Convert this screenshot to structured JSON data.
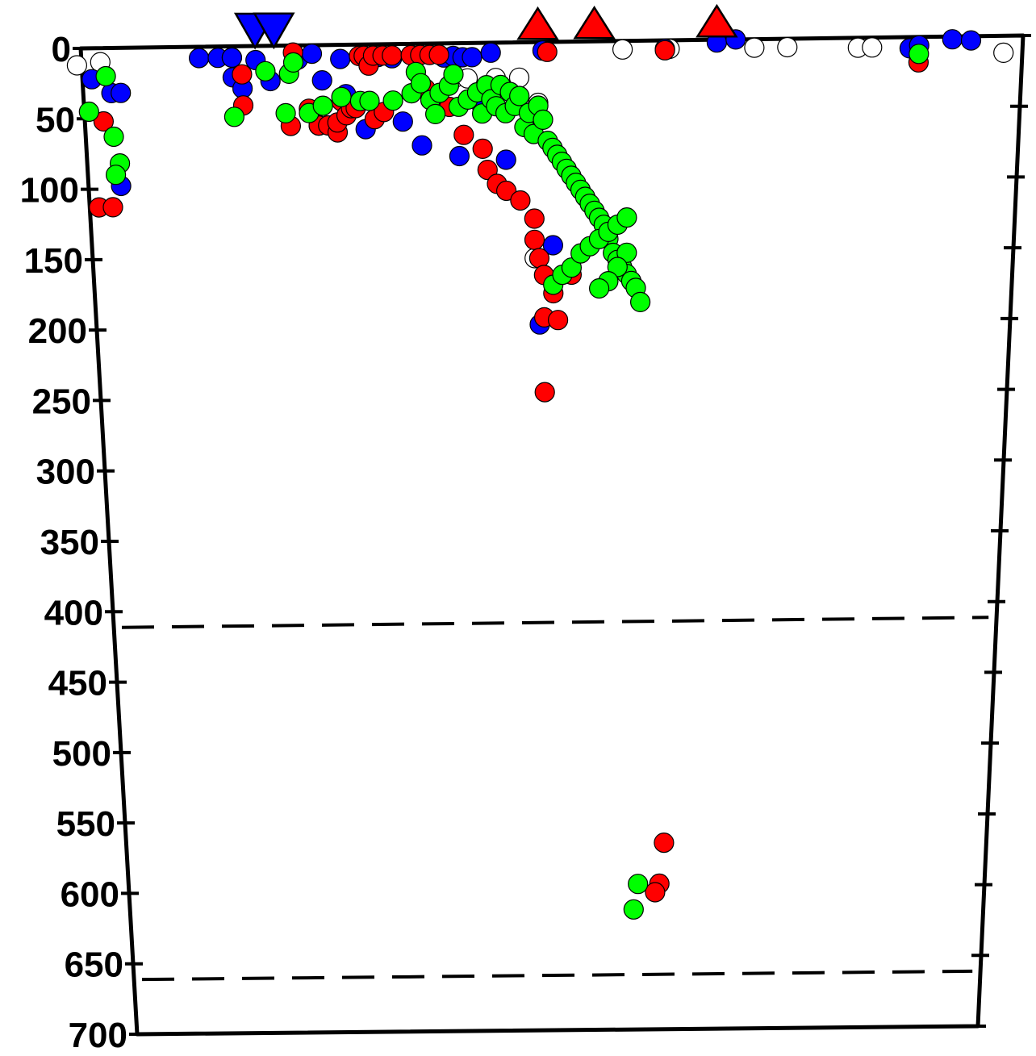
{
  "chart_data": {
    "type": "scatter",
    "title": "",
    "xlabel": "",
    "ylabel": "",
    "y_axis": {
      "ylim": [
        0,
        700
      ],
      "inverted": true,
      "ticks": [
        "0",
        "50",
        "100",
        "150",
        "200",
        "250",
        "300",
        "350",
        "400",
        "450",
        "500",
        "550",
        "600",
        "650",
        "700"
      ]
    },
    "x_axis": {
      "xlim": [
        0,
        100
      ],
      "tick_labels": false
    },
    "grid": false,
    "legend": "none",
    "reference_lines": [
      {
        "depth": 410,
        "style": "dashed"
      },
      {
        "depth": 660,
        "style": "dashed"
      }
    ],
    "colors": {
      "blue": "#0000ff",
      "red": "#ff0000",
      "green": "#00ff00",
      "white": "#ffffff",
      "outline": "#000000"
    },
    "surface_markers": [
      {
        "type": "inverted-triangle",
        "color": "#0000ff",
        "x": 18.5
      },
      {
        "type": "inverted-triangle",
        "color": "#0000ff",
        "x": 20.5
      },
      {
        "type": "triangle",
        "color": "#ff0000",
        "x": 48.5
      },
      {
        "type": "triangle",
        "color": "#ff0000",
        "x": 54.5
      },
      {
        "type": "triangle",
        "color": "#ff0000",
        "x": 67.5
      }
    ],
    "series": [
      {
        "color": "white",
        "points": [
          [
            -0.5,
            12
          ],
          [
            2,
            10
          ],
          [
            39.5,
            25
          ],
          [
            41,
            25
          ],
          [
            44,
            25
          ],
          [
            46.5,
            25
          ],
          [
            48.5,
            43
          ],
          [
            48,
            153
          ],
          [
            57.5,
            6
          ],
          [
            62.5,
            6
          ],
          [
            71.5,
            6
          ],
          [
            75,
            6
          ],
          [
            82.5,
            7
          ],
          [
            84,
            7
          ],
          [
            98,
            12
          ]
        ]
      },
      {
        "color": "blue",
        "points": [
          [
            1,
            22
          ],
          [
            3,
            32
          ],
          [
            4,
            32
          ],
          [
            3.5,
            98
          ],
          [
            12.5,
            8
          ],
          [
            14.5,
            8
          ],
          [
            16,
            8
          ],
          [
            16,
            8
          ],
          [
            16,
            22
          ],
          [
            17,
            30
          ],
          [
            18.5,
            10
          ],
          [
            20,
            25
          ],
          [
            23,
            10
          ],
          [
            24.5,
            6
          ],
          [
            25.5,
            25
          ],
          [
            25,
            57
          ],
          [
            27.5,
            10
          ],
          [
            28,
            35
          ],
          [
            30,
            60
          ],
          [
            31.5,
            9
          ],
          [
            33,
            10
          ],
          [
            34,
            55
          ],
          [
            36,
            72
          ],
          [
            38.5,
            10
          ],
          [
            39.5,
            9
          ],
          [
            40.5,
            10
          ],
          [
            41.5,
            10
          ],
          [
            42.5,
            45
          ],
          [
            43.5,
            7
          ],
          [
            40,
            80
          ],
          [
            45,
            83
          ],
          [
            48.5,
            200
          ],
          [
            49,
            6
          ],
          [
            50,
            144
          ],
          [
            62,
            6
          ],
          [
            67.5,
            2
          ],
          [
            69.5,
            0
          ],
          [
            88,
            8
          ],
          [
            89,
            6
          ],
          [
            92.5,
            2
          ],
          [
            94.5,
            3
          ]
        ]
      },
      {
        "color": "red",
        "points": [
          [
            2,
            52
          ],
          [
            1,
            113
          ],
          [
            2.5,
            113
          ],
          [
            17,
            20
          ],
          [
            17,
            42
          ],
          [
            22.5,
            5
          ],
          [
            22,
            57
          ],
          [
            24,
            45
          ],
          [
            25,
            57
          ],
          [
            26,
            57
          ],
          [
            27,
            62
          ],
          [
            27,
            55
          ],
          [
            27.5,
            40
          ],
          [
            28,
            50
          ],
          [
            28.5,
            45
          ],
          [
            29,
            45
          ],
          [
            29.5,
            8
          ],
          [
            30,
            8
          ],
          [
            30.5,
            15
          ],
          [
            31,
            8
          ],
          [
            32,
            8
          ],
          [
            31,
            53
          ],
          [
            32,
            48
          ],
          [
            33,
            8
          ],
          [
            35,
            8
          ],
          [
            36,
            8
          ],
          [
            37,
            8
          ],
          [
            38,
            8
          ],
          [
            36.5,
            32
          ],
          [
            39,
            45
          ],
          [
            40.5,
            65
          ],
          [
            42.5,
            75
          ],
          [
            43,
            90
          ],
          [
            44,
            100
          ],
          [
            45,
            105
          ],
          [
            46.5,
            112
          ],
          [
            48,
            125
          ],
          [
            48,
            140
          ],
          [
            48.5,
            153
          ],
          [
            49,
            165
          ],
          [
            50,
            178
          ],
          [
            49,
            195
          ],
          [
            50.5,
            197
          ],
          [
            52,
            165
          ],
          [
            49,
            248
          ],
          [
            49.5,
            7
          ],
          [
            62,
            7
          ],
          [
            89,
            18
          ],
          [
            62.5,
            568
          ],
          [
            62,
            597
          ],
          [
            61.5,
            603
          ]
        ]
      },
      {
        "color": "green",
        "points": [
          [
            0.5,
            45
          ],
          [
            2.5,
            20
          ],
          [
            3,
            63
          ],
          [
            3.5,
            82
          ],
          [
            3,
            90
          ],
          [
            16,
            50
          ],
          [
            19.5,
            18
          ],
          [
            21.5,
            48
          ],
          [
            22,
            20
          ],
          [
            22.5,
            12
          ],
          [
            24,
            48
          ],
          [
            25.5,
            43
          ],
          [
            27.5,
            37
          ],
          [
            29.5,
            40
          ],
          [
            30.5,
            40
          ],
          [
            33,
            40
          ],
          [
            35,
            35
          ],
          [
            35.5,
            20
          ],
          [
            36,
            28
          ],
          [
            37,
            40
          ],
          [
            37.5,
            50
          ],
          [
            38,
            35
          ],
          [
            39,
            30
          ],
          [
            39.5,
            22
          ],
          [
            40,
            45
          ],
          [
            41,
            40
          ],
          [
            42,
            35
          ],
          [
            42.5,
            50
          ],
          [
            43,
            30
          ],
          [
            43.5,
            40
          ],
          [
            44,
            45
          ],
          [
            44.5,
            30
          ],
          [
            45,
            50
          ],
          [
            45.5,
            35
          ],
          [
            46,
            45
          ],
          [
            46.5,
            38
          ],
          [
            47,
            60
          ],
          [
            47.5,
            50
          ],
          [
            48,
            65
          ],
          [
            48.5,
            45
          ],
          [
            49,
            55
          ],
          [
            49.5,
            70
          ],
          [
            50,
            75
          ],
          [
            50.5,
            80
          ],
          [
            51,
            85
          ],
          [
            51.5,
            90
          ],
          [
            52,
            95
          ],
          [
            52.5,
            100
          ],
          [
            53,
            105
          ],
          [
            53.5,
            110
          ],
          [
            54,
            115
          ],
          [
            54.5,
            120
          ],
          [
            55,
            125
          ],
          [
            55.5,
            130
          ],
          [
            56,
            140
          ],
          [
            56.5,
            150
          ],
          [
            57,
            155
          ],
          [
            57.5,
            160
          ],
          [
            58,
            165
          ],
          [
            58.5,
            170
          ],
          [
            59,
            175
          ],
          [
            59.5,
            185
          ],
          [
            50,
            172
          ],
          [
            51,
            165
          ],
          [
            52,
            160
          ],
          [
            53,
            150
          ],
          [
            54,
            145
          ],
          [
            55,
            140
          ],
          [
            56,
            135
          ],
          [
            57,
            130
          ],
          [
            58,
            125
          ],
          [
            58,
            150
          ],
          [
            57,
            160
          ],
          [
            56,
            170
          ],
          [
            55,
            175
          ],
          [
            89,
            12
          ],
          [
            59.5,
            597
          ],
          [
            59,
            615
          ]
        ]
      }
    ]
  }
}
